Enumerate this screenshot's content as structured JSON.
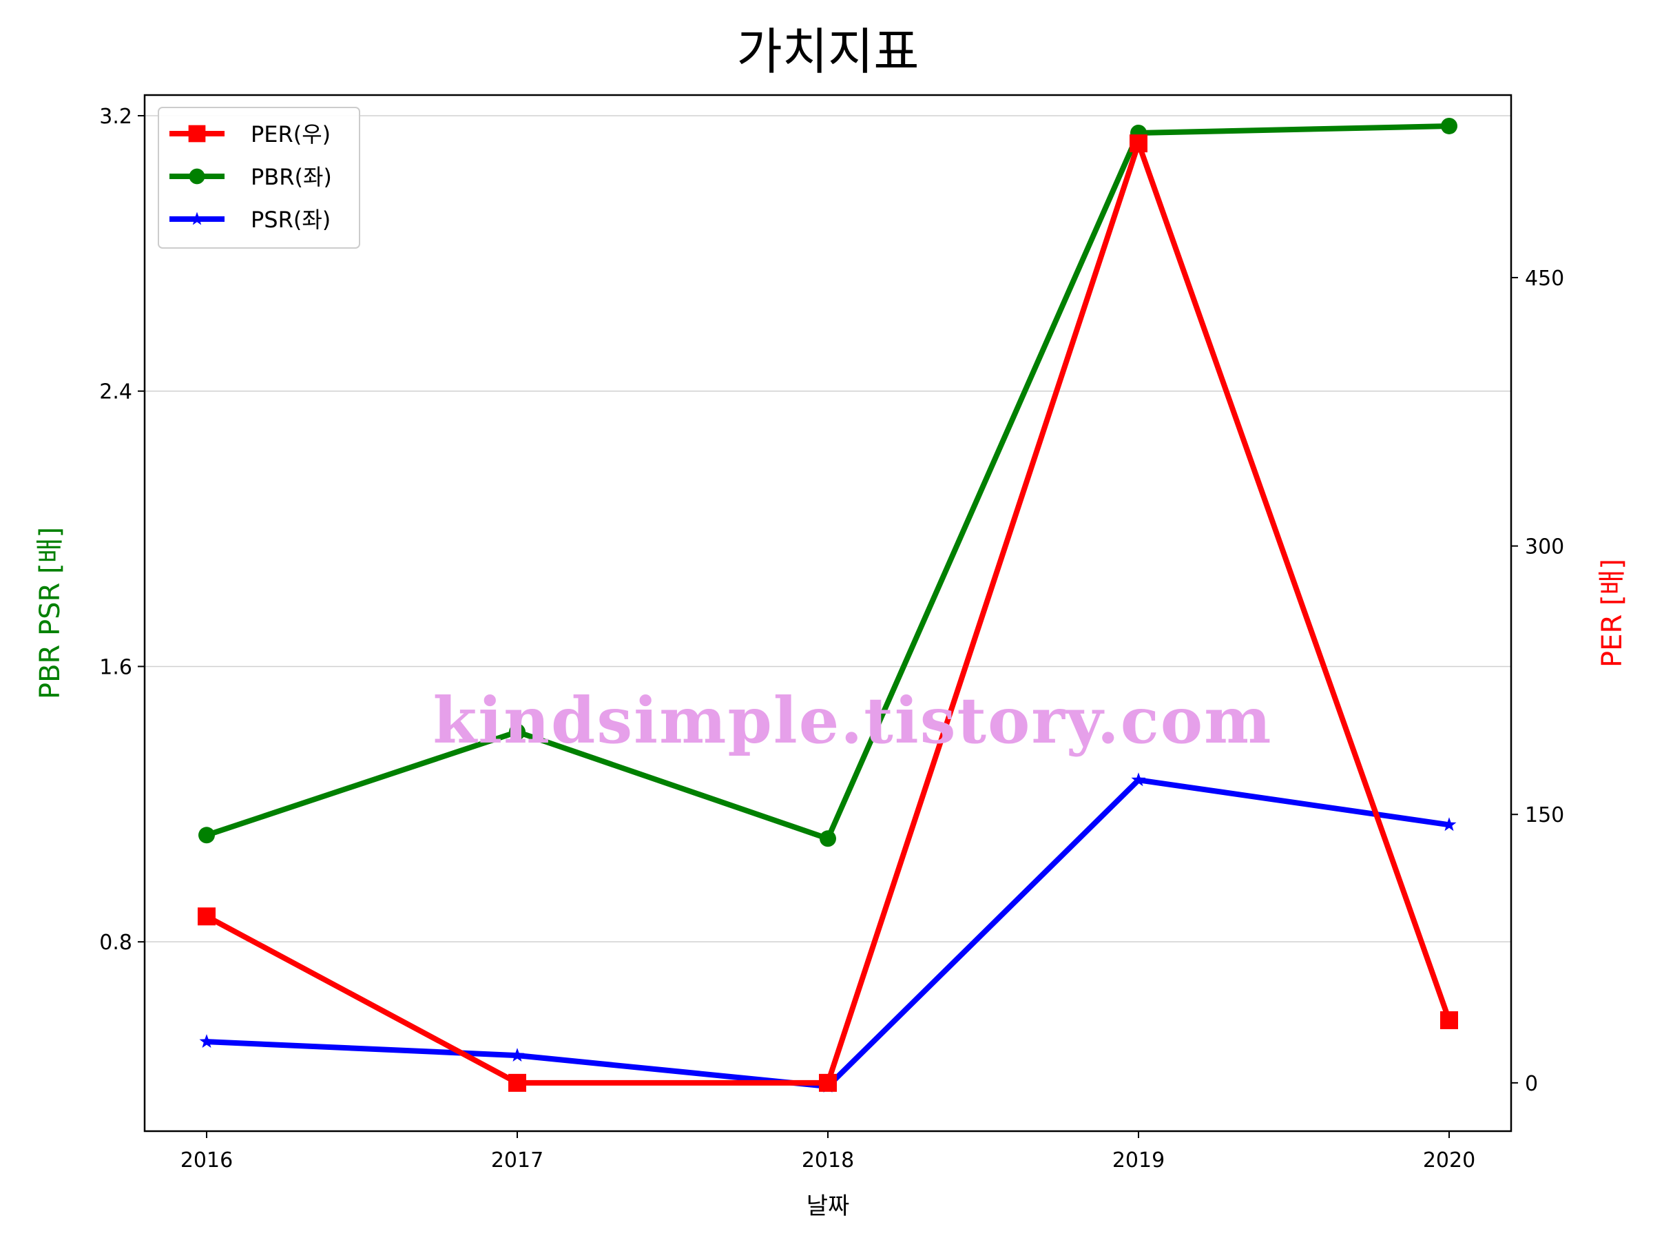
{
  "watermark": "kindsimple.tistory.com",
  "chart_data": {
    "type": "line",
    "title": "가치지표",
    "xlabel": "날짜",
    "ylabel_left": "PBR PSR [배]",
    "ylabel_right": "PER [배]",
    "ylabel_left_color": "#008000",
    "ylabel_right_color": "#ff0000",
    "categories": [
      "2016",
      "2017",
      "2018",
      "2019",
      "2020"
    ],
    "y_left": {
      "lim": [
        0.25,
        3.26
      ],
      "ticks": [
        0.8,
        1.6,
        2.4,
        3.2
      ],
      "tick_labels": [
        "0.8",
        "1.6",
        "2.4",
        "3.2"
      ]
    },
    "y_right": {
      "lim": [
        -27,
        552
      ],
      "ticks": [
        0,
        150,
        300,
        450
      ],
      "tick_labels": [
        "0",
        "150",
        "300",
        "450"
      ]
    },
    "grid": "horizontal-left",
    "legend_position": "top-left",
    "series": [
      {
        "name": "PER(우)",
        "axis": "right",
        "color": "#ff0000",
        "marker": "square",
        "values": [
          93,
          0,
          0,
          525,
          35
        ]
      },
      {
        "name": "PBR(좌)",
        "axis": "left",
        "color": "#008000",
        "marker": "circle",
        "values": [
          1.11,
          1.41,
          1.1,
          3.15,
          3.17
        ]
      },
      {
        "name": "PSR(좌)",
        "axis": "left",
        "color": "#0000ff",
        "marker": "star",
        "values": [
          0.51,
          0.47,
          0.38,
          1.27,
          1.14
        ]
      }
    ]
  }
}
